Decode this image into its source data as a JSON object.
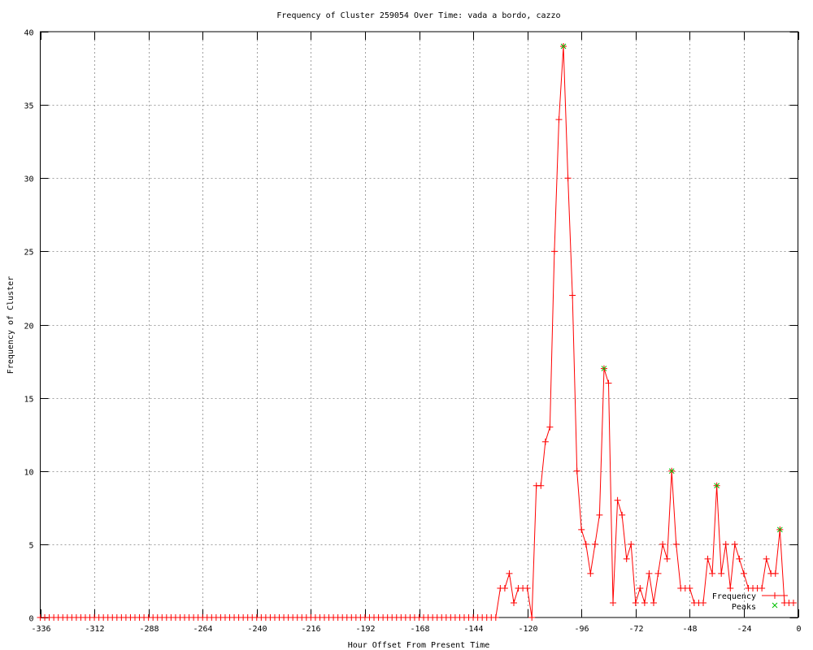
{
  "chart_data": {
    "type": "line",
    "title": "Frequency of Cluster 259054 Over Time: vada a bordo, cazzo",
    "xlabel": "Hour Offset From Present Time",
    "ylabel": "Frequency of Cluster",
    "xlim": [
      -336,
      0
    ],
    "ylim": [
      0,
      40
    ],
    "xticks": [
      -336,
      -312,
      -288,
      -264,
      -240,
      -216,
      -192,
      -168,
      -144,
      -120,
      -96,
      -72,
      -48,
      -24,
      0
    ],
    "yticks": [
      0,
      5,
      10,
      15,
      20,
      25,
      30,
      35,
      40
    ],
    "grid": true,
    "legend_placement": "bottom-right",
    "series": [
      {
        "name": "Frequency",
        "color": "#ff0000",
        "marker": "plus",
        "x": [
          -336,
          -334,
          -332,
          -330,
          -328,
          -326,
          -324,
          -322,
          -320,
          -318,
          -316,
          -314,
          -312,
          -310,
          -308,
          -306,
          -304,
          -302,
          -300,
          -298,
          -296,
          -294,
          -292,
          -290,
          -288,
          -286,
          -284,
          -282,
          -280,
          -278,
          -276,
          -274,
          -272,
          -270,
          -268,
          -266,
          -264,
          -262,
          -260,
          -258,
          -256,
          -254,
          -252,
          -250,
          -248,
          -246,
          -244,
          -242,
          -240,
          -238,
          -236,
          -234,
          -232,
          -230,
          -228,
          -226,
          -224,
          -222,
          -220,
          -218,
          -216,
          -214,
          -212,
          -210,
          -208,
          -206,
          -204,
          -202,
          -200,
          -198,
          -196,
          -194,
          -192,
          -190,
          -188,
          -186,
          -184,
          -182,
          -180,
          -178,
          -176,
          -174,
          -172,
          -170,
          -168,
          -166,
          -164,
          -162,
          -160,
          -158,
          -156,
          -154,
          -152,
          -150,
          -148,
          -146,
          -144,
          -142,
          -140,
          -138,
          -136,
          -134,
          -132,
          -130,
          -128,
          -126,
          -124,
          -122,
          -120,
          -118,
          -116,
          -114,
          -112,
          -110,
          -108,
          -106,
          -104,
          -102,
          -100,
          -98,
          -96,
          -94,
          -92,
          -90,
          -88,
          -86,
          -84,
          -82,
          -80,
          -78,
          -76,
          -74,
          -72,
          -70,
          -68,
          -66,
          -64,
          -62,
          -60,
          -58,
          -56,
          -54,
          -52,
          -50,
          -48,
          -46,
          -44,
          -42,
          -40,
          -38,
          -36,
          -34,
          -32,
          -30,
          -28,
          -26,
          -24,
          -22,
          -20,
          -18,
          -16,
          -14,
          -12,
          -10,
          -8,
          -6,
          -4,
          -2
        ],
        "y": [
          0,
          0,
          0,
          0,
          0,
          0,
          0,
          0,
          0,
          0,
          0,
          0,
          0,
          0,
          0,
          0,
          0,
          0,
          0,
          0,
          0,
          0,
          0,
          0,
          0,
          0,
          0,
          0,
          0,
          0,
          0,
          0,
          0,
          0,
          0,
          0,
          0,
          0,
          0,
          0,
          0,
          0,
          0,
          0,
          0,
          0,
          0,
          0,
          0,
          0,
          0,
          0,
          0,
          0,
          0,
          0,
          0,
          0,
          0,
          0,
          0,
          0,
          0,
          0,
          0,
          0,
          0,
          0,
          0,
          0,
          0,
          0,
          0,
          0,
          0,
          0,
          0,
          0,
          0,
          0,
          0,
          0,
          0,
          0,
          0,
          0,
          0,
          0,
          0,
          0,
          0,
          0,
          0,
          0,
          0,
          0,
          0,
          0,
          0,
          0,
          0,
          0,
          2,
          2,
          3,
          1,
          2,
          2,
          2,
          0,
          9,
          9,
          12,
          13,
          25,
          34,
          39,
          30,
          22,
          10,
          6,
          5,
          3,
          5,
          7,
          17,
          16,
          1,
          8,
          7,
          4,
          5,
          1,
          2,
          1,
          3,
          1,
          3,
          5,
          4,
          10,
          5,
          2,
          2,
          2,
          1,
          1,
          1,
          4,
          3,
          9,
          3,
          5,
          2,
          5,
          4,
          3,
          2,
          2,
          2,
          2,
          4,
          3,
          3,
          6,
          1,
          1,
          1
        ]
      },
      {
        "name": "Peaks",
        "color": "#00c000",
        "marker": "x",
        "x": [
          -104,
          -86,
          -56,
          -36,
          -8
        ],
        "y": [
          39,
          17,
          10,
          9,
          6
        ]
      }
    ]
  }
}
